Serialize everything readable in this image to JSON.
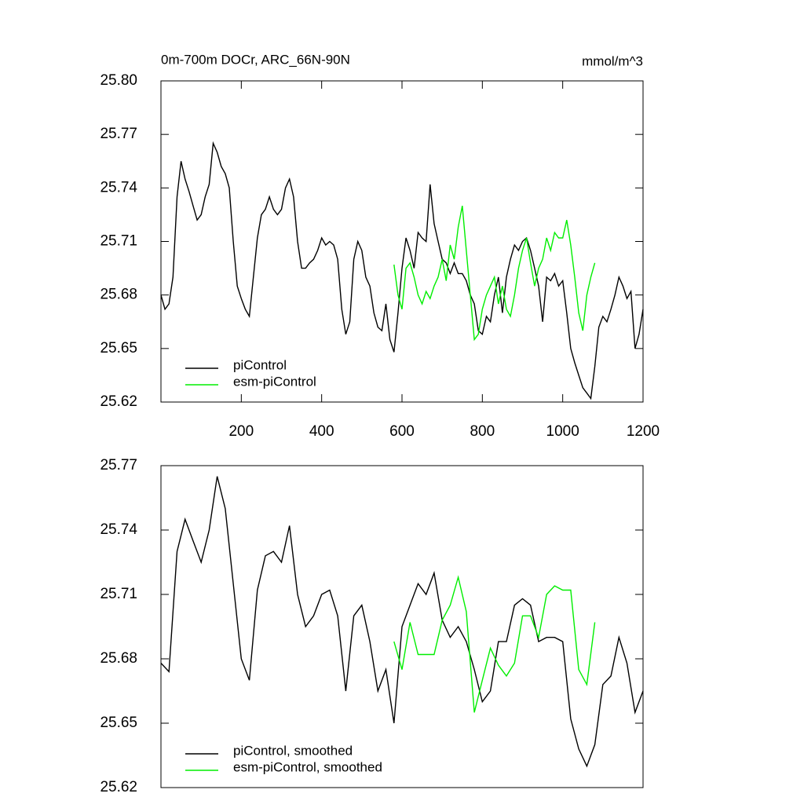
{
  "chart_data": [
    {
      "type": "line",
      "title": "0m-700m DOCr, ARC_66N-90N",
      "units": "mmol/m^3",
      "legend": "lower left",
      "xlim": [
        0,
        1200
      ],
      "xticks": [
        200,
        400,
        600,
        800,
        1000,
        1200
      ],
      "ylim": [
        25.62,
        25.8
      ],
      "yticks": [
        25.62,
        25.65,
        25.68,
        25.71,
        25.74,
        25.77,
        {
          "value": 25.8,
          "label": "25.80"
        }
      ],
      "series": [
        {
          "name": "piControl",
          "color": "#000000",
          "x": [
            0,
            10,
            20,
            30,
            40,
            50,
            60,
            70,
            80,
            90,
            100,
            110,
            120,
            130,
            140,
            150,
            160,
            170,
            180,
            190,
            200,
            210,
            220,
            230,
            240,
            250,
            260,
            270,
            280,
            290,
            300,
            310,
            320,
            330,
            340,
            350,
            360,
            370,
            380,
            390,
            400,
            410,
            420,
            430,
            440,
            450,
            460,
            470,
            480,
            490,
            500,
            510,
            520,
            530,
            540,
            550,
            560,
            570,
            580,
            590,
            600,
            610,
            620,
            630,
            640,
            650,
            660,
            670,
            680,
            690,
            700,
            710,
            720,
            730,
            740,
            750,
            760,
            770,
            780,
            790,
            800,
            810,
            820,
            830,
            840,
            850,
            860,
            870,
            880,
            890,
            900,
            910,
            920,
            930,
            940,
            950,
            960,
            970,
            980,
            990,
            1000,
            1010,
            1020,
            1030,
            1040,
            1050,
            1060,
            1070,
            1080,
            1090,
            1100,
            1110,
            1120,
            1130,
            1140,
            1150,
            1160,
            1170,
            1180,
            1190,
            1200
          ],
          "values": [
            25.68,
            25.672,
            25.675,
            25.69,
            25.735,
            25.755,
            25.745,
            25.738,
            25.73,
            25.722,
            25.725,
            25.735,
            25.742,
            25.765,
            25.76,
            25.752,
            25.748,
            25.74,
            25.71,
            25.685,
            25.678,
            25.672,
            25.668,
            25.69,
            25.712,
            25.725,
            25.728,
            25.735,
            25.728,
            25.725,
            25.728,
            25.74,
            25.745,
            25.735,
            25.71,
            25.695,
            25.695,
            25.698,
            25.7,
            25.705,
            25.712,
            25.708,
            25.71,
            25.708,
            25.7,
            25.672,
            25.658,
            25.665,
            25.7,
            25.71,
            25.705,
            25.69,
            25.685,
            25.67,
            25.662,
            25.66,
            25.675,
            25.655,
            25.648,
            25.67,
            25.695,
            25.712,
            25.705,
            25.695,
            25.715,
            25.712,
            25.71,
            25.742,
            25.72,
            25.71,
            25.7,
            25.698,
            25.692,
            25.698,
            25.692,
            25.692,
            25.688,
            25.68,
            25.675,
            25.66,
            25.658,
            25.668,
            25.665,
            25.68,
            25.69,
            25.67,
            25.69,
            25.7,
            25.708,
            25.705,
            25.71,
            25.712,
            25.705,
            25.695,
            25.685,
            25.665,
            25.69,
            25.688,
            25.692,
            25.685,
            25.688,
            25.67,
            25.65,
            25.642,
            25.635,
            25.628,
            25.625,
            25.622,
            25.64,
            25.662,
            25.668,
            25.665,
            25.672,
            25.68,
            25.69,
            25.685,
            25.678,
            25.682,
            25.65,
            25.658,
            25.672
          ]
        },
        {
          "name": "esm-piControl",
          "color": "#00ee00",
          "x": [
            580,
            590,
            600,
            610,
            620,
            630,
            640,
            650,
            660,
            670,
            680,
            690,
            700,
            710,
            720,
            730,
            740,
            750,
            760,
            770,
            780,
            790,
            800,
            810,
            820,
            830,
            840,
            850,
            860,
            870,
            880,
            890,
            900,
            910,
            920,
            930,
            940,
            950,
            960,
            970,
            980,
            990,
            1000,
            1010,
            1020,
            1030,
            1040,
            1050,
            1060,
            1070,
            1080
          ],
          "values": [
            25.697,
            25.68,
            25.672,
            25.695,
            25.698,
            25.69,
            25.68,
            25.675,
            25.682,
            25.678,
            25.685,
            25.69,
            25.7,
            25.688,
            25.708,
            25.7,
            25.718,
            25.73,
            25.705,
            25.68,
            25.655,
            25.658,
            25.672,
            25.68,
            25.685,
            25.69,
            25.675,
            25.685,
            25.672,
            25.668,
            25.68,
            25.695,
            25.705,
            25.712,
            25.698,
            25.685,
            25.695,
            25.7,
            25.712,
            25.705,
            25.715,
            25.712,
            25.712,
            25.722,
            25.708,
            25.69,
            25.67,
            25.66,
            25.68,
            25.69,
            25.698
          ]
        }
      ]
    },
    {
      "type": "line",
      "legend": "lower left",
      "xlim": [
        0,
        1200
      ],
      "ylim": [
        25.62,
        25.77
      ],
      "yticks": [
        25.62,
        25.65,
        25.68,
        25.71,
        25.74,
        25.77
      ],
      "series": [
        {
          "name": "piControl, smoothed",
          "color": "#000000",
          "x": [
            0,
            20,
            40,
            60,
            80,
            100,
            120,
            140,
            160,
            180,
            200,
            220,
            240,
            260,
            280,
            300,
            320,
            340,
            360,
            380,
            400,
            420,
            440,
            460,
            480,
            500,
            520,
            540,
            560,
            580,
            600,
            620,
            640,
            660,
            680,
            700,
            720,
            740,
            760,
            780,
            800,
            820,
            840,
            860,
            880,
            900,
            920,
            940,
            960,
            980,
            1000,
            1020,
            1040,
            1060,
            1080,
            1100,
            1120,
            1140,
            1160,
            1180,
            1200
          ],
          "values": [
            25.678,
            25.674,
            25.73,
            25.745,
            25.735,
            25.725,
            25.74,
            25.765,
            25.75,
            25.715,
            25.68,
            25.67,
            25.712,
            25.728,
            25.73,
            25.725,
            25.742,
            25.71,
            25.695,
            25.7,
            25.71,
            25.712,
            25.7,
            25.665,
            25.7,
            25.705,
            25.688,
            25.665,
            25.675,
            25.65,
            25.695,
            25.705,
            25.715,
            25.71,
            25.72,
            25.698,
            25.69,
            25.695,
            25.688,
            25.675,
            25.66,
            25.665,
            25.688,
            25.688,
            25.705,
            25.708,
            25.705,
            25.688,
            25.69,
            25.69,
            25.688,
            25.652,
            25.638,
            25.63,
            25.64,
            25.668,
            25.672,
            25.69,
            25.678,
            25.655,
            25.665
          ]
        },
        {
          "name": "esm-piControl, smoothed",
          "color": "#00ee00",
          "x": [
            580,
            600,
            620,
            640,
            660,
            680,
            700,
            720,
            740,
            760,
            780,
            800,
            820,
            840,
            860,
            880,
            900,
            920,
            940,
            960,
            980,
            1000,
            1020,
            1040,
            1060,
            1080
          ],
          "values": [
            25.688,
            25.675,
            25.697,
            25.682,
            25.682,
            25.682,
            25.698,
            25.705,
            25.718,
            25.702,
            25.655,
            25.67,
            25.685,
            25.677,
            25.672,
            25.678,
            25.7,
            25.7,
            25.69,
            25.71,
            25.714,
            25.712,
            25.712,
            25.675,
            25.668,
            25.697
          ]
        }
      ]
    }
  ]
}
